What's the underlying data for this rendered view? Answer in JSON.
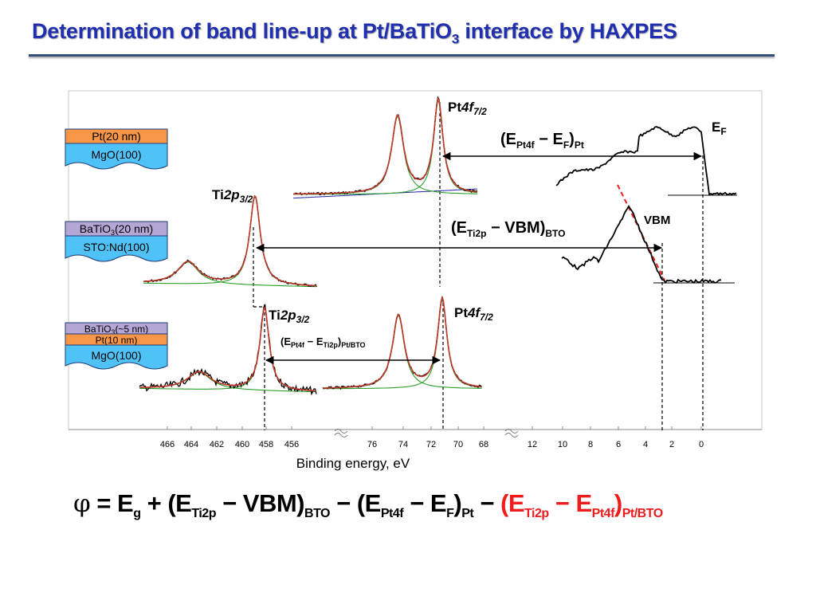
{
  "slide": {
    "title_main": "Determination of band line-up at Pt/BaTiO",
    "title_sub": "3",
    "title_tail": " interface by HAXPES"
  },
  "stacks": [
    {
      "layers": [
        {
          "label": "Pt(20 nm)",
          "color": "#f79646"
        },
        {
          "label": "MgO(100)",
          "color": "#4fc3f7"
        }
      ]
    },
    {
      "layers": [
        {
          "label": "BaTiO3(20 nm)",
          "color": "#b4a7d6"
        },
        {
          "label": "STO:Nd(100)",
          "color": "#4fc3f7"
        }
      ]
    },
    {
      "layers": [
        {
          "label": "BaTiO3(~5 nm)",
          "color": "#b4a7d6"
        },
        {
          "label": "Pt(10 nm)",
          "color": "#f79646"
        },
        {
          "label": "MgO(100)",
          "color": "#4fc3f7"
        }
      ]
    }
  ],
  "labels": {
    "pt4f_top": "Pt4f7/2",
    "pt4f_bottom": "Pt4f7/2",
    "ti2p_middle": "Ti2p3/2",
    "ti2p_bottom": "Ti2p3/2",
    "ef": "EF",
    "vbm": "VBM",
    "arrow_pt": "(EPt4f − EF)Pt",
    "arrow_bto": "(ETi2p − VBM)BTO",
    "arrow_ptbto": "(EPt4f − ETi2p)Pt/BTO"
  },
  "axis": {
    "xlabel": "Binding energy, eV",
    "ticks_ti": [
      "466",
      "464",
      "462",
      "460",
      "458",
      "456"
    ],
    "ticks_pt": [
      "76",
      "74",
      "72",
      "70",
      "68"
    ],
    "ticks_vb": [
      "12",
      "10",
      "8",
      "6",
      "4",
      "2",
      "0"
    ]
  },
  "formula": {
    "text": "φ = Eg + (ETi2p − VBM)BTO − (EPt4f − EF)Pt − (ETi2p − EPt4f)Pt/BTO"
  },
  "colors": {
    "title": "#1f2fb0",
    "data": "#000000",
    "fit": "#c0392b",
    "component": "#2ca02c",
    "background": "#1f1fa8",
    "highlight": "#ee1c1c"
  }
}
